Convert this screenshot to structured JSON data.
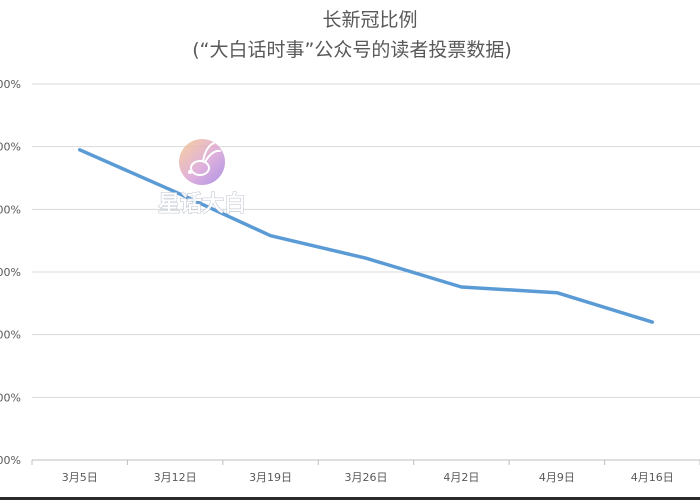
{
  "chart_data": {
    "type": "line",
    "title": "长新冠比例",
    "subtitle": "(“大白话时事”公众号的读者投票数据)",
    "categories": [
      "3月5日",
      "3月12日",
      "3月19日",
      "3月26日",
      "4月2日",
      "4月9日",
      "4月16日"
    ],
    "y_tick_labels": [
      "00%",
      "00%",
      "00%",
      "00%",
      "00%",
      "00%",
      "00%"
    ],
    "ylim": [
      0,
      6
    ],
    "series": [
      {
        "values": [
          4.95,
          4.28,
          3.58,
          3.22,
          2.76,
          2.67,
          2.2
        ]
      }
    ],
    "series_color": "#5b9bd5",
    "grid": true,
    "legend": "none"
  },
  "watermark": {
    "text": "星话大白",
    "icon": "rabbit-logo-icon"
  }
}
